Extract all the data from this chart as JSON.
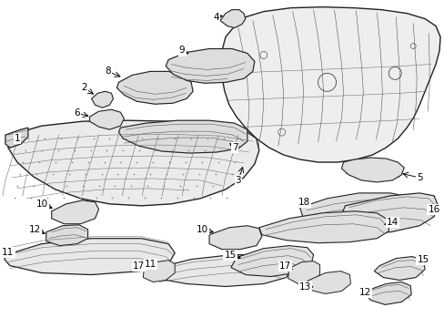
{
  "bg": "#ffffff",
  "fg": "#1a1a1a",
  "fig_w": 4.89,
  "fig_h": 3.6,
  "dpi": 100,
  "label_fs": 7.5,
  "lw_part": 0.8,
  "lw_detail": 0.45
}
